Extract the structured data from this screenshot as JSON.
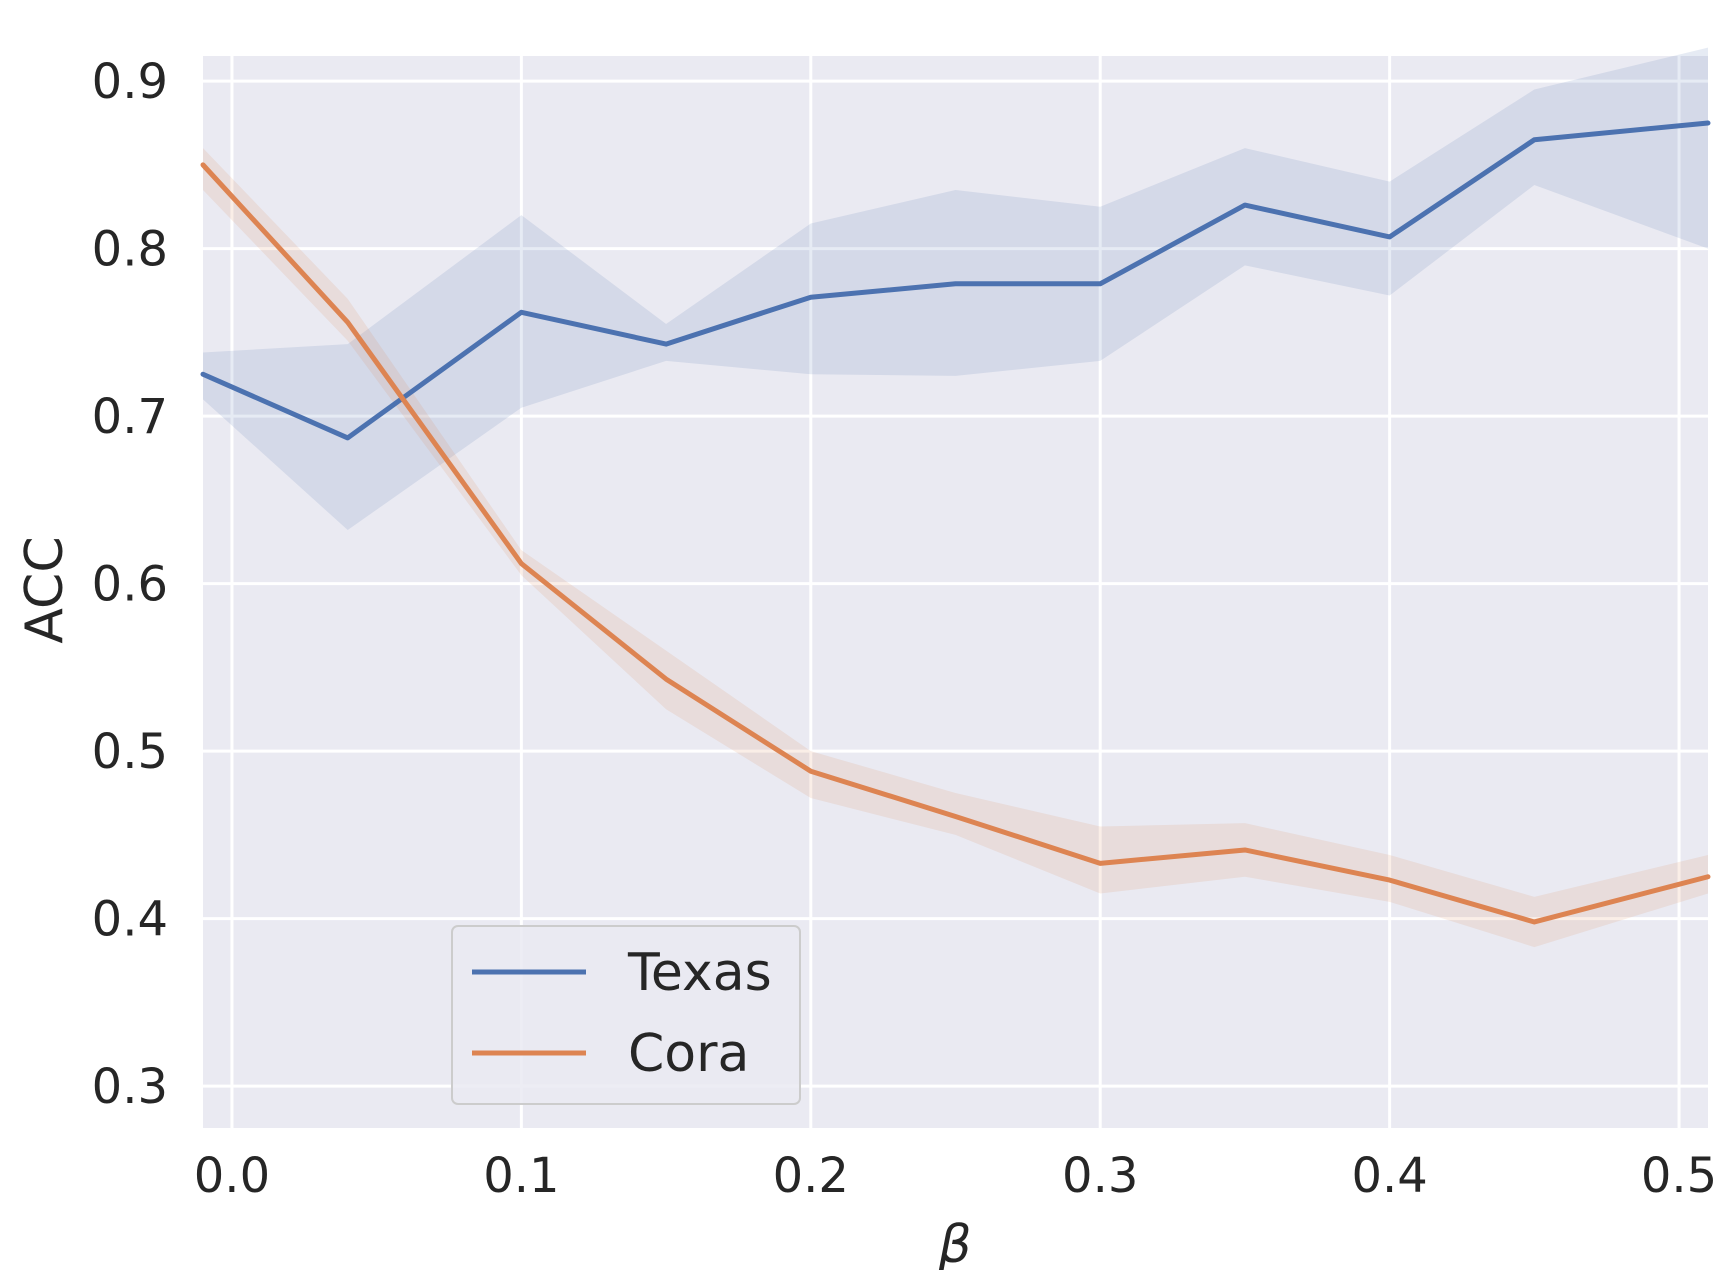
{
  "chart_data": {
    "type": "line",
    "xlabel": "β",
    "ylabel": "ACC",
    "xlim": [
      -0.01,
      0.51
    ],
    "ylim": [
      0.275,
      0.915
    ],
    "x_ticks": [
      "0.0",
      "0.1",
      "0.2",
      "0.3",
      "0.4",
      "0.5"
    ],
    "y_ticks": [
      "0.3",
      "0.4",
      "0.5",
      "0.6",
      "0.7",
      "0.8",
      "0.9"
    ],
    "grid": true,
    "legend_position": "lower-left",
    "x": [
      -0.01,
      0.04,
      0.1,
      0.15,
      0.2,
      0.25,
      0.3,
      0.35,
      0.4,
      0.45,
      0.51
    ],
    "series": [
      {
        "name": "Texas",
        "color": "#4c72b0",
        "values": [
          0.725,
          0.687,
          0.762,
          0.743,
          0.771,
          0.779,
          0.779,
          0.826,
          0.807,
          0.865,
          0.875
        ],
        "lower": [
          0.71,
          0.632,
          0.705,
          0.733,
          0.725,
          0.724,
          0.733,
          0.79,
          0.772,
          0.838,
          0.8
        ],
        "upper": [
          0.738,
          0.743,
          0.82,
          0.755,
          0.815,
          0.835,
          0.825,
          0.86,
          0.84,
          0.895,
          0.92
        ]
      },
      {
        "name": "Cora",
        "color": "#dd8452",
        "values": [
          0.85,
          0.756,
          0.612,
          0.543,
          0.488,
          0.461,
          0.433,
          0.441,
          0.423,
          0.398,
          0.425
        ],
        "lower": [
          0.835,
          0.745,
          0.605,
          0.525,
          0.472,
          0.45,
          0.415,
          0.425,
          0.41,
          0.383,
          0.415
        ],
        "upper": [
          0.86,
          0.77,
          0.62,
          0.56,
          0.5,
          0.475,
          0.455,
          0.457,
          0.438,
          0.413,
          0.438
        ]
      }
    ]
  }
}
